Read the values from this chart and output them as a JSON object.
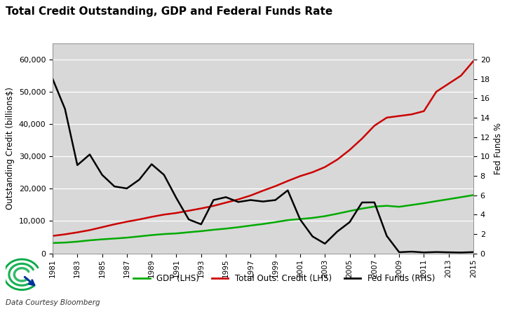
{
  "title": "Total Credit Outstanding, GDP and Federal Funds Rate",
  "ylabel_left": "Outstanding Credit (billions$)",
  "ylabel_right": "Fed Funds %",
  "source_text": "Data Courtesy Bloomberg",
  "background_color": "#d8d8d8",
  "years": [
    1981,
    1982,
    1983,
    1984,
    1985,
    1986,
    1987,
    1988,
    1989,
    1990,
    1991,
    1992,
    1993,
    1994,
    1995,
    1996,
    1997,
    1998,
    1999,
    2000,
    2001,
    2002,
    2003,
    2004,
    2005,
    2006,
    2007,
    2008,
    2009,
    2010,
    2011,
    2012,
    2013,
    2014,
    2015
  ],
  "gdp": [
    3211,
    3345,
    3638,
    4041,
    4347,
    4590,
    4870,
    5253,
    5657,
    5979,
    6174,
    6539,
    6879,
    7309,
    7664,
    8100,
    8608,
    9089,
    9661,
    10281,
    10626,
    10978,
    11511,
    12275,
    13094,
    13856,
    14478,
    14719,
    14419,
    14964,
    15518,
    16163,
    16768,
    17393,
    18037
  ],
  "total_credit": [
    5400,
    5900,
    6500,
    7200,
    8100,
    9000,
    9800,
    10500,
    11300,
    12000,
    12500,
    13200,
    13900,
    14700,
    15700,
    16700,
    17900,
    19400,
    20800,
    22400,
    23900,
    25100,
    26700,
    29000,
    32000,
    35500,
    39500,
    42000,
    42500,
    43000,
    44000,
    50000,
    52500,
    55000,
    59500
  ],
  "fed_funds": [
    18.0,
    14.9,
    9.1,
    10.2,
    8.1,
    6.9,
    6.7,
    7.6,
    9.2,
    8.1,
    5.7,
    3.5,
    3.0,
    5.5,
    5.8,
    5.3,
    5.5,
    5.35,
    5.5,
    6.5,
    3.5,
    1.75,
    1.0,
    2.25,
    3.22,
    5.25,
    5.26,
    1.8,
    0.12,
    0.18,
    0.1,
    0.14,
    0.11,
    0.09,
    0.13
  ],
  "gdp_color": "#00aa00",
  "credit_color": "#cc0000",
  "fed_color": "#000000",
  "ylim_left": [
    0,
    65000
  ],
  "ylim_right": [
    0,
    21.67
  ],
  "yticks_left": [
    0,
    10000,
    20000,
    30000,
    40000,
    50000,
    60000
  ],
  "yticks_right": [
    0,
    2,
    4,
    6,
    8,
    10,
    12,
    14,
    16,
    18,
    20
  ],
  "legend_labels": [
    "GDP (LHS)",
    "Total Outs. Credit (LHS)",
    "Fed Funds (RHS)"
  ],
  "xtick_years": [
    1981,
    1983,
    1985,
    1987,
    1989,
    1991,
    1993,
    1995,
    1997,
    1999,
    2001,
    2003,
    2005,
    2007,
    2009,
    2011,
    2013,
    2015
  ]
}
